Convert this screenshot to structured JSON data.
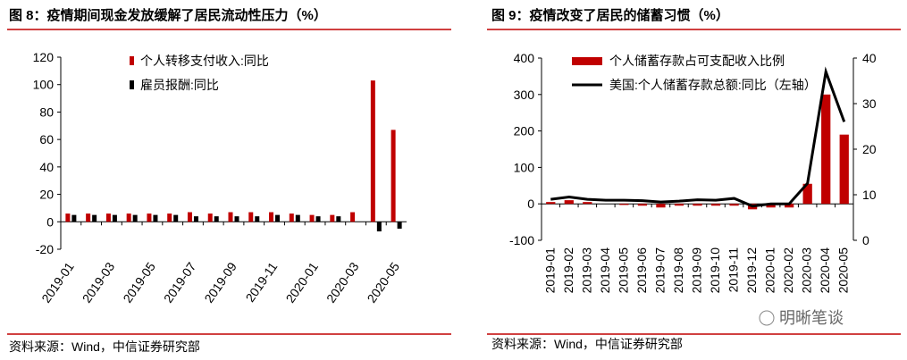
{
  "chart_data": [
    {
      "type": "bar",
      "title": "图 8：疫情期间现金发放缓解了居民流动性压力（%）",
      "categories": [
        "2019-01",
        null,
        "2019-03",
        null,
        "2019-05",
        null,
        "2019-07",
        null,
        "2019-09",
        null,
        "2019-11",
        null,
        "2020-01",
        null,
        "2020-03",
        null,
        "2020-05"
      ],
      "series": [
        {
          "name": "个人转移支付收入:同比",
          "color": "#c00000",
          "values": [
            6,
            6,
            6,
            6,
            6,
            6,
            7,
            6,
            7,
            7,
            7,
            6,
            5,
            5,
            7,
            103,
            67
          ]
        },
        {
          "name": "雇员报酬:同比",
          "color": "#000000",
          "values": [
            5,
            5,
            5,
            5,
            5,
            5,
            4,
            4,
            4,
            4,
            5,
            5,
            4,
            4,
            null,
            -7,
            -5
          ]
        }
      ],
      "ylim": [
        -20,
        120
      ],
      "yticks": [
        -20,
        0,
        20,
        40,
        60,
        80,
        100,
        120
      ],
      "legend": "top",
      "source": "资料来源：Wind，中信证券研究部"
    },
    {
      "type": "bar-line",
      "title": "图 9：疫情改变了居民的储蓄习惯（%）",
      "categories": [
        "2019-01",
        "2019-02",
        "2019-03",
        "2019-04",
        "2019-05",
        "2019-06",
        "2019-07",
        "2019-08",
        "2019-09",
        "2019-10",
        "2019-11",
        "2019-12",
        "2020-01",
        "2020-02",
        "2020-03",
        "2020-04",
        "2020-05"
      ],
      "series": [
        {
          "name": "个人储蓄存款占可支配收入比例",
          "color": "#c00000",
          "kind": "bar",
          "values": [
            5,
            10,
            5,
            0,
            -3,
            -5,
            -10,
            -5,
            -5,
            -5,
            -5,
            -15,
            -10,
            -10,
            55,
            300,
            190
          ]
        },
        {
          "name": "美国:个人储蓄存款总额:同比（左轴）",
          "color": "#000000",
          "kind": "line",
          "axis": "y2",
          "values": [
            9,
            9.5,
            9,
            8.8,
            8.8,
            8.7,
            8.4,
            8.6,
            8.9,
            8.8,
            9.2,
            7.5,
            8,
            8,
            12.5,
            37,
            26
          ]
        }
      ],
      "ylim": [
        -100,
        400
      ],
      "yticks": [
        -100,
        0,
        100,
        200,
        300,
        400
      ],
      "y2lim": [
        0,
        40
      ],
      "y2ticks": [
        0,
        10,
        20,
        30,
        40
      ],
      "legend": "top-left",
      "source": "资料来源：Wind，中信证券研究部"
    }
  ],
  "watermark": "明晰笔谈"
}
